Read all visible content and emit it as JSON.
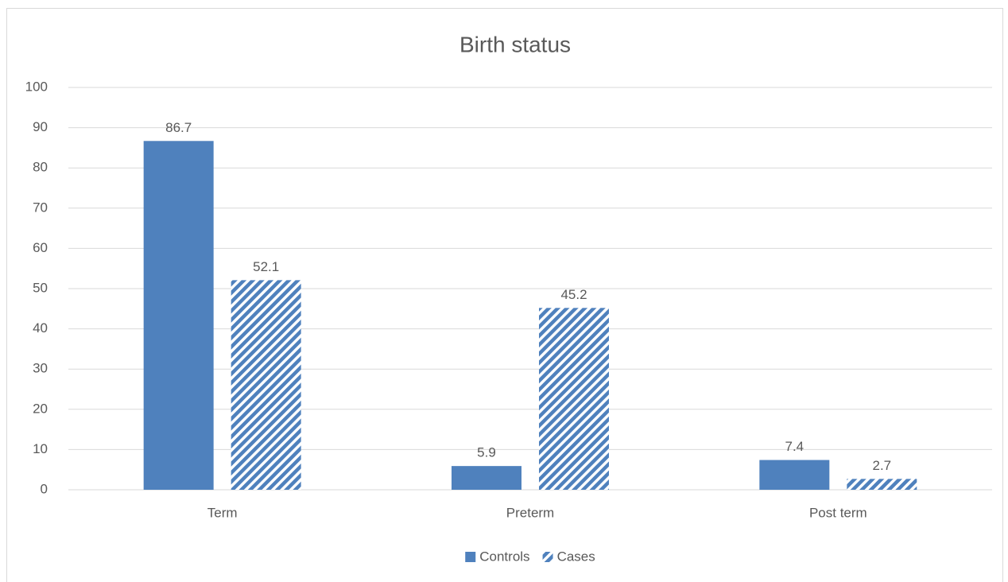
{
  "chart_data": {
    "type": "bar",
    "title": "Birth status",
    "categories": [
      "Term",
      "Preterm",
      "Post term"
    ],
    "series": [
      {
        "name": "Controls",
        "color": "#4f81bd",
        "pattern": "solid",
        "values": [
          86.7,
          5.9,
          7.4
        ]
      },
      {
        "name": "Cases",
        "color": "#4f81bd",
        "pattern": "hatch",
        "values": [
          52.1,
          45.2,
          2.7
        ]
      }
    ],
    "ylim": [
      0,
      100
    ],
    "yticks": [
      0,
      10,
      20,
      30,
      40,
      50,
      60,
      70,
      80,
      90,
      100
    ],
    "grid": true,
    "legend": "bottom"
  }
}
